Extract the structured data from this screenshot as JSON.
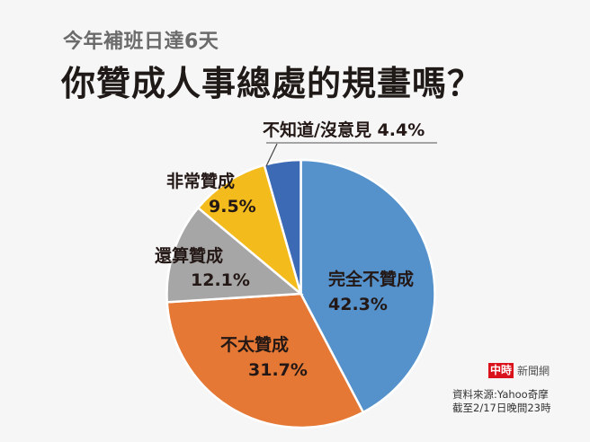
{
  "header": {
    "subtitle": "今年補班日達6天",
    "title": "你贊成人事總處的規畫嗎？"
  },
  "labels": {
    "strongly_oppose": {
      "name": "完全不贊成",
      "pct": "42.3%"
    },
    "somewhat_oppose": {
      "name": "不太贊成",
      "pct": "31.7%"
    },
    "somewhat_support": {
      "name": "還算贊成",
      "pct": "12.1%"
    },
    "strongly_support": {
      "name": "非常贊成",
      "pct": "9.5%"
    },
    "no_opinion": {
      "name": "不知道/沒意見 4.4%"
    }
  },
  "footer": {
    "logo_mark": "中時",
    "logo_text": "新聞網",
    "source": "資料來源:Yahoo奇摩",
    "cutoff": "截至2/17日晚間23時"
  },
  "chart_data": {
    "type": "pie",
    "title": "你贊成人事總處的規畫嗎？",
    "subtitle": "今年補班日達6天",
    "categories": [
      "完全不贊成",
      "不太贊成",
      "還算贊成",
      "非常贊成",
      "不知道/沒意見"
    ],
    "values": [
      42.3,
      31.7,
      12.1,
      9.5,
      4.4
    ],
    "colors": [
      "#5592cb",
      "#e57834",
      "#a6a6a6",
      "#f3bb1c",
      "#3c6ab5"
    ],
    "start_angle": "12 o'clock, clockwise",
    "legend": "none (direct labels)",
    "source": "資料來源:Yahoo奇摩",
    "note": "截至2/17日晚間23時"
  }
}
